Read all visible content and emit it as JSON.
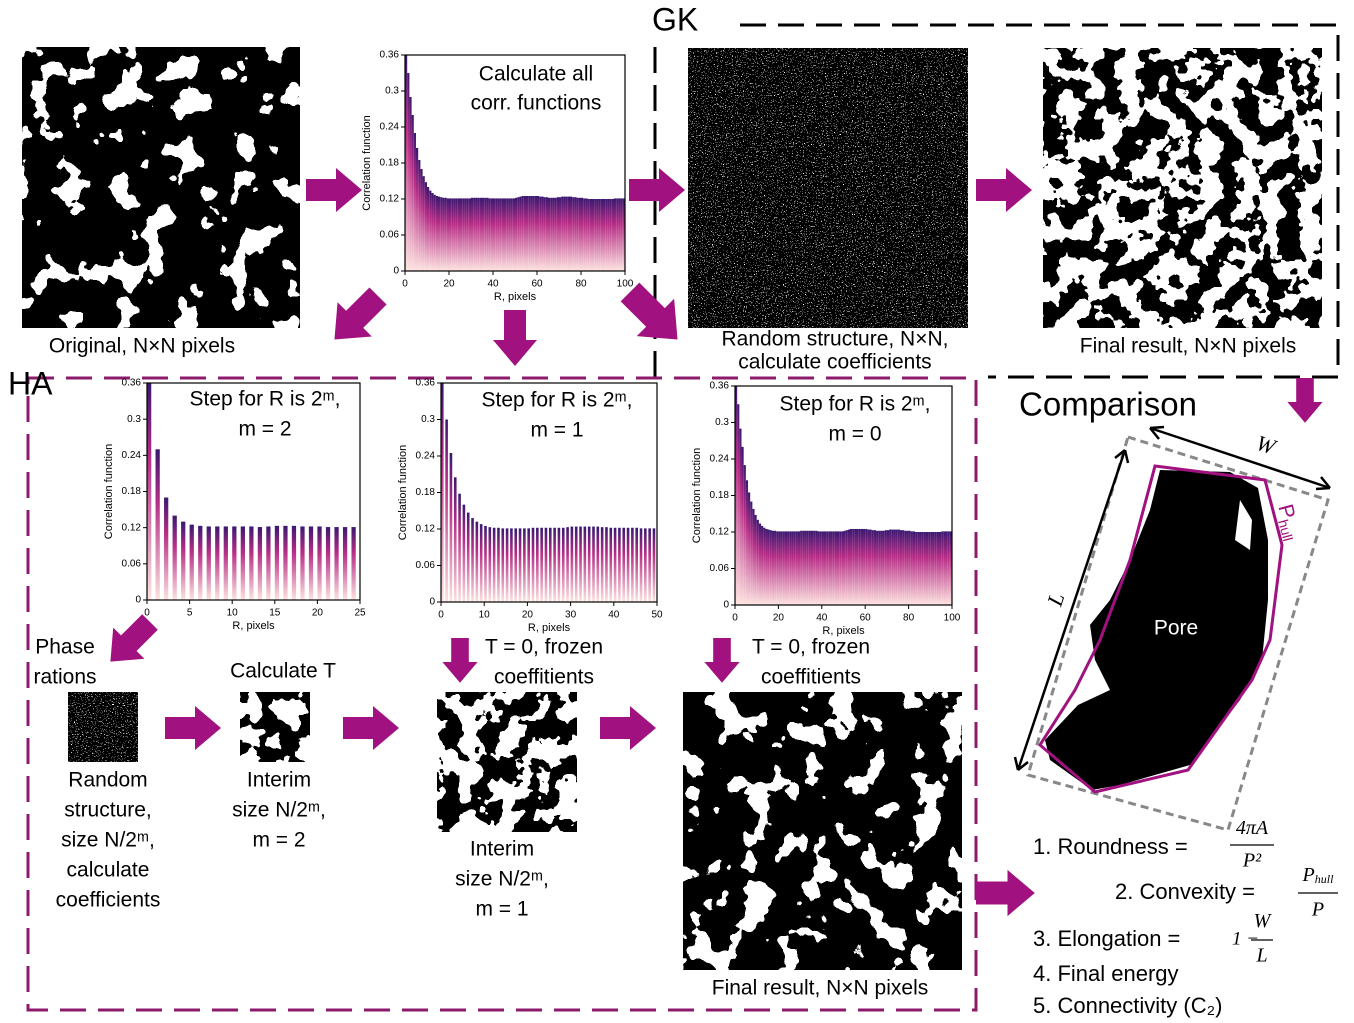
{
  "gk": {
    "label": "GK"
  },
  "ha": {
    "label": "HA"
  },
  "top": {
    "original_label": "Original, N×N pixels",
    "random_label": [
      "Random structure, N×N,",
      "calculate coefficients"
    ],
    "final_label": "Final result, N×N pixels"
  },
  "charts": [
    {
      "title": [
        "Calculate all",
        "corr. functions"
      ],
      "ylabel": "Correlation function",
      "xlabel": "R, pixels",
      "xlim": [
        0,
        100
      ],
      "ylim": [
        0,
        0.36
      ],
      "xticks": [
        0,
        20,
        40,
        60,
        80,
        100
      ],
      "yticks": [
        0,
        0.06,
        0.12,
        0.18,
        0.24,
        0.3,
        0.36
      ],
      "x": [
        0,
        1,
        2,
        3,
        4,
        5,
        6,
        7,
        8,
        9,
        10,
        11,
        12,
        13,
        14,
        15,
        16,
        17,
        18,
        19,
        20,
        21,
        22,
        23,
        24,
        25,
        26,
        27,
        28,
        29,
        30,
        31,
        32,
        33,
        34,
        35,
        36,
        37,
        38,
        39,
        40,
        41,
        42,
        43,
        44,
        45,
        46,
        47,
        48,
        49,
        50,
        51,
        52,
        53,
        54,
        55,
        56,
        57,
        58,
        59,
        60,
        61,
        62,
        63,
        64,
        65,
        66,
        67,
        68,
        69,
        70,
        71,
        72,
        73,
        74,
        75,
        76,
        77,
        78,
        79,
        80,
        81,
        82,
        83,
        84,
        85,
        86,
        87,
        88,
        89,
        90,
        91,
        92,
        93,
        94,
        95,
        96,
        97,
        98,
        99
      ],
      "values": [
        0.36,
        0.33,
        0.29,
        0.26,
        0.23,
        0.205,
        0.185,
        0.17,
        0.158,
        0.148,
        0.14,
        0.134,
        0.13,
        0.127,
        0.125,
        0.124,
        0.123,
        0.122,
        0.122,
        0.121,
        0.121,
        0.121,
        0.121,
        0.121,
        0.121,
        0.121,
        0.121,
        0.121,
        0.121,
        0.121,
        0.122,
        0.122,
        0.122,
        0.122,
        0.122,
        0.122,
        0.122,
        0.122,
        0.121,
        0.121,
        0.121,
        0.121,
        0.121,
        0.121,
        0.121,
        0.121,
        0.121,
        0.121,
        0.121,
        0.121,
        0.122,
        0.123,
        0.124,
        0.125,
        0.125,
        0.125,
        0.125,
        0.125,
        0.125,
        0.125,
        0.125,
        0.124,
        0.124,
        0.123,
        0.123,
        0.122,
        0.122,
        0.122,
        0.122,
        0.123,
        0.123,
        0.124,
        0.124,
        0.124,
        0.124,
        0.124,
        0.123,
        0.123,
        0.122,
        0.122,
        0.122,
        0.121,
        0.121,
        0.12,
        0.12,
        0.12,
        0.12,
        0.12,
        0.12,
        0.12,
        0.12,
        0.12,
        0.12,
        0.12,
        0.12,
        0.121,
        0.121,
        0.121,
        0.121,
        0.121
      ]
    },
    {
      "title": [
        "Step for R is 2ᵐ,",
        "m = 2"
      ],
      "ylabel": "Correlation function",
      "xlabel": "R, pixels",
      "xlim": [
        0,
        25
      ],
      "ylim": [
        0,
        0.36
      ],
      "xticks": [
        0,
        5,
        10,
        15,
        20,
        25
      ],
      "yticks": [
        0,
        0.06,
        0.12,
        0.18,
        0.24,
        0.3,
        0.36
      ],
      "x": [
        0,
        1,
        2,
        3,
        4,
        5,
        6,
        7,
        8,
        9,
        10,
        11,
        12,
        13,
        14,
        15,
        16,
        17,
        18,
        19,
        20,
        21,
        22,
        23,
        24
      ],
      "values": [
        0.36,
        0.25,
        0.17,
        0.14,
        0.13,
        0.125,
        0.123,
        0.122,
        0.122,
        0.122,
        0.122,
        0.122,
        0.122,
        0.121,
        0.122,
        0.123,
        0.123,
        0.123,
        0.122,
        0.122,
        0.122,
        0.121,
        0.121,
        0.121,
        0.121
      ]
    },
    {
      "title": [
        "Step for R is 2ᵐ,",
        "m = 1"
      ],
      "ylabel": "Correlation function",
      "xlabel": "R, pixels",
      "xlim": [
        0,
        50
      ],
      "ylim": [
        0,
        0.36
      ],
      "xticks": [
        0,
        10,
        20,
        30,
        40,
        50
      ],
      "yticks": [
        0,
        0.06,
        0.12,
        0.18,
        0.24,
        0.3,
        0.36
      ],
      "x": [
        0,
        1,
        2,
        3,
        4,
        5,
        6,
        7,
        8,
        9,
        10,
        11,
        12,
        13,
        14,
        15,
        16,
        17,
        18,
        19,
        20,
        21,
        22,
        23,
        24,
        25,
        26,
        27,
        28,
        29,
        30,
        31,
        32,
        33,
        34,
        35,
        36,
        37,
        38,
        39,
        40,
        41,
        42,
        43,
        44,
        45,
        46,
        47,
        48,
        49
      ],
      "values": [
        0.36,
        0.3,
        0.245,
        0.205,
        0.178,
        0.16,
        0.147,
        0.138,
        0.132,
        0.128,
        0.125,
        0.123,
        0.122,
        0.122,
        0.121,
        0.121,
        0.121,
        0.121,
        0.121,
        0.121,
        0.121,
        0.122,
        0.122,
        0.122,
        0.122,
        0.122,
        0.122,
        0.122,
        0.122,
        0.123,
        0.124,
        0.124,
        0.124,
        0.124,
        0.124,
        0.124,
        0.124,
        0.123,
        0.123,
        0.122,
        0.122,
        0.122,
        0.122,
        0.122,
        0.122,
        0.122,
        0.121,
        0.121,
        0.121,
        0.121
      ]
    },
    {
      "title": [
        "Step for R is 2ᵐ,",
        "m = 0"
      ],
      "ylabel": "Correlation function",
      "xlabel": "R, pixels",
      "xlim": [
        0,
        100
      ],
      "ylim": [
        0,
        0.36
      ],
      "xticks": [
        0,
        20,
        40,
        60,
        80,
        100
      ],
      "yticks": [
        0,
        0.06,
        0.12,
        0.18,
        0.24,
        0.3,
        0.36
      ],
      "x": [
        0,
        1,
        2,
        3,
        4,
        5,
        6,
        7,
        8,
        9,
        10,
        11,
        12,
        13,
        14,
        15,
        16,
        17,
        18,
        19,
        20,
        21,
        22,
        23,
        24,
        25,
        26,
        27,
        28,
        29,
        30,
        31,
        32,
        33,
        34,
        35,
        36,
        37,
        38,
        39,
        40,
        41,
        42,
        43,
        44,
        45,
        46,
        47,
        48,
        49,
        50,
        51,
        52,
        53,
        54,
        55,
        56,
        57,
        58,
        59,
        60,
        61,
        62,
        63,
        64,
        65,
        66,
        67,
        68,
        69,
        70,
        71,
        72,
        73,
        74,
        75,
        76,
        77,
        78,
        79,
        80,
        81,
        82,
        83,
        84,
        85,
        86,
        87,
        88,
        89,
        90,
        91,
        92,
        93,
        94,
        95,
        96,
        97,
        98,
        99
      ],
      "values": [
        0.36,
        0.33,
        0.29,
        0.26,
        0.23,
        0.205,
        0.185,
        0.17,
        0.158,
        0.148,
        0.14,
        0.134,
        0.13,
        0.127,
        0.125,
        0.124,
        0.123,
        0.122,
        0.122,
        0.121,
        0.121,
        0.121,
        0.121,
        0.121,
        0.121,
        0.121,
        0.121,
        0.121,
        0.121,
        0.121,
        0.122,
        0.122,
        0.122,
        0.122,
        0.122,
        0.122,
        0.122,
        0.122,
        0.121,
        0.121,
        0.121,
        0.121,
        0.121,
        0.121,
        0.121,
        0.121,
        0.121,
        0.121,
        0.121,
        0.121,
        0.122,
        0.123,
        0.124,
        0.125,
        0.125,
        0.125,
        0.125,
        0.125,
        0.125,
        0.125,
        0.125,
        0.124,
        0.124,
        0.123,
        0.123,
        0.122,
        0.122,
        0.122,
        0.122,
        0.123,
        0.123,
        0.124,
        0.124,
        0.124,
        0.124,
        0.124,
        0.123,
        0.123,
        0.122,
        0.122,
        0.122,
        0.121,
        0.121,
        0.12,
        0.12,
        0.12,
        0.12,
        0.12,
        0.12,
        0.12,
        0.12,
        0.12,
        0.12,
        0.12,
        0.12,
        0.121,
        0.121,
        0.121,
        0.121,
        0.121
      ]
    }
  ],
  "ha_steps": {
    "phase": [
      "Phase",
      "rations"
    ],
    "calc_t": "Calculate T",
    "random": [
      "Random",
      "structure,",
      "size N/2ᵐ,",
      "calculate",
      "coefficients"
    ],
    "interim2": [
      "Interim",
      "size N/2ᵐ,",
      "m = 2"
    ],
    "frozen1": [
      "T = 0, frozen",
      "coeffitients"
    ],
    "interim1": [
      "Interim",
      "size N/2ᵐ,",
      "m = 1"
    ],
    "frozen0": [
      "T = 0, frozen",
      "coeffitients"
    ],
    "final": "Final result, N×N pixels"
  },
  "comparison": {
    "title": "Comparison",
    "pore": "Pore",
    "w": "W",
    "l": "L",
    "p_hull": {
      "main": "P",
      "sub": "hull"
    },
    "roundness": {
      "label": "1. Roundness =",
      "num": "4πA",
      "den": "P²"
    },
    "convexity": {
      "label": "2. Convexity =",
      "num": "P",
      "num_sub": "hull",
      "den": "P"
    },
    "elongation": {
      "label": "3. Elongation =",
      "prefix": "1 −",
      "num": "W",
      "den": "L"
    },
    "energy": "4. Final energy",
    "connectivity": "5. Connectivity (C₂)"
  }
}
